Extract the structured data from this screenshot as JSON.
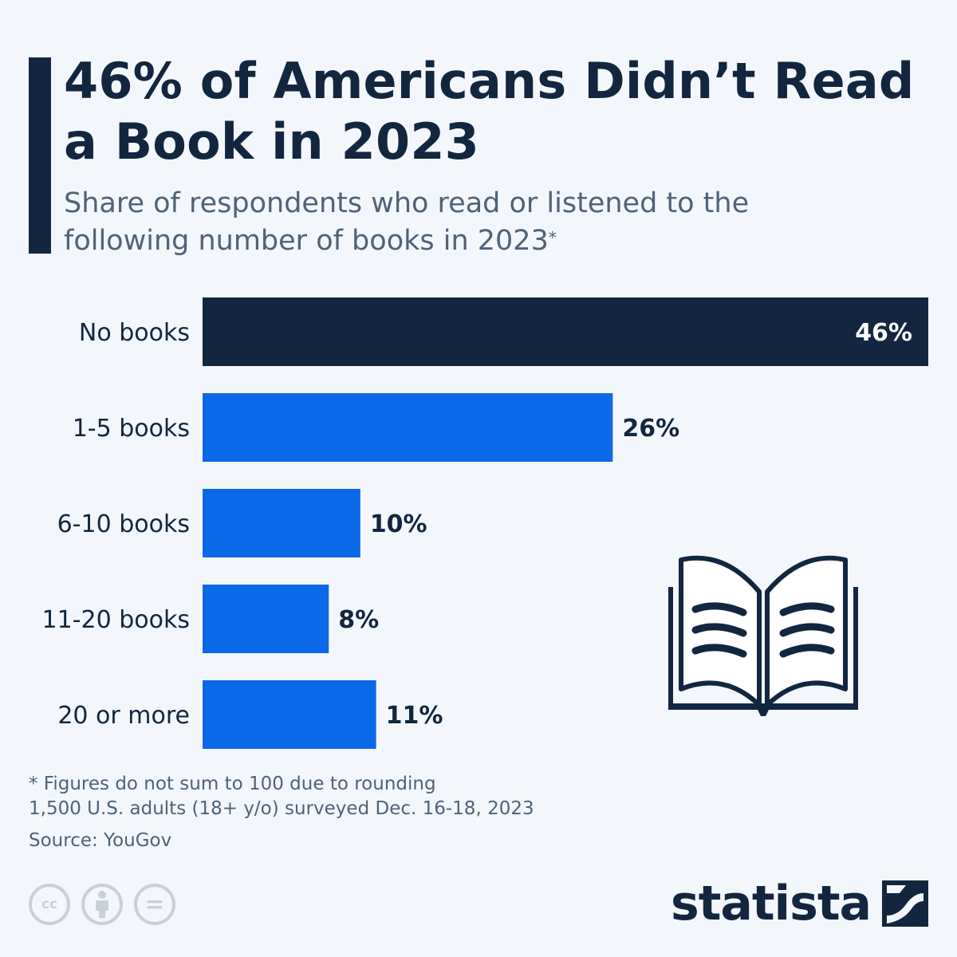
{
  "header": {
    "title": "46% of Americans Didn’t Read a Book in 2023",
    "subtitle": "Share of respondents who read or listened to the following number of books in 2023",
    "subtitle_marker": "*"
  },
  "chart_data": {
    "type": "bar",
    "orientation": "horizontal",
    "title": "46% of Americans Didn’t Read a Book in 2023",
    "subtitle": "Share of respondents who read or listened to the following number of books in 2023",
    "categories": [
      "No books",
      "1-5 books",
      "6-10 books",
      "11-20 books",
      "20 or more"
    ],
    "values": [
      46,
      26,
      10,
      8,
      11
    ],
    "value_labels": [
      "46%",
      "26%",
      "10%",
      "8%",
      "11%"
    ],
    "highlight_index": 0,
    "xlim": [
      0,
      46
    ],
    "grid": false,
    "colors": {
      "highlight": "#12263f",
      "bar": "#0b68e6"
    }
  },
  "footer": {
    "note": "* Figures do not sum to 100 due to rounding",
    "survey": "1,500 U.S. adults (18+ y/o) surveyed Dec. 16-18, 2023",
    "source": "Source: YouGov"
  },
  "license": {
    "cc": "cc",
    "nd": "="
  },
  "brand": {
    "name": "statista"
  },
  "icons": {
    "book": "open-book-icon",
    "person": "person-icon"
  }
}
